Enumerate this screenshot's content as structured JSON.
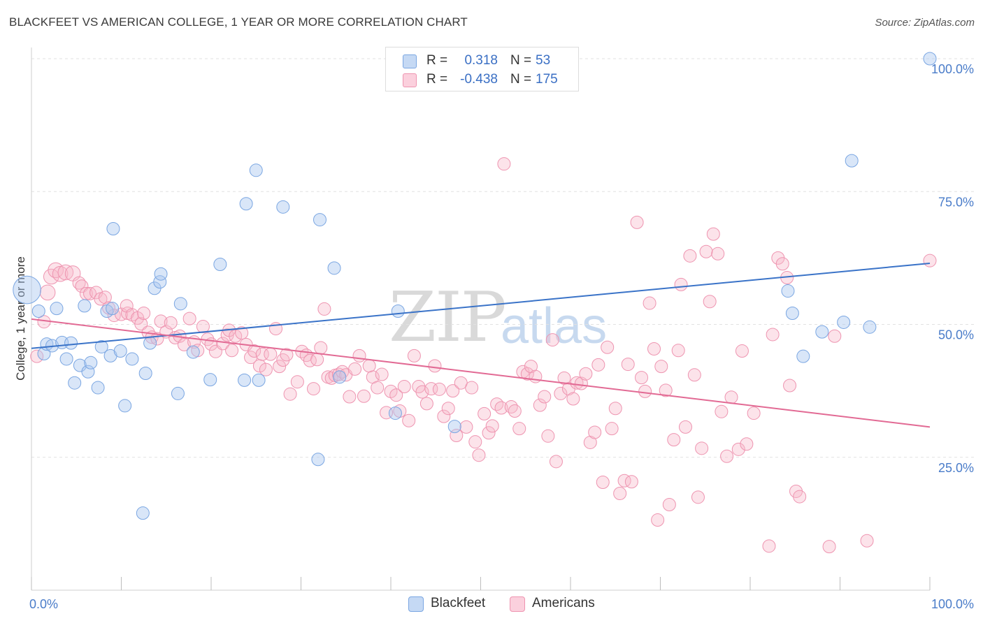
{
  "title": "BLACKFEET VS AMERICAN COLLEGE, 1 YEAR OR MORE CORRELATION CHART",
  "source": "Source: ZipAtlas.com",
  "watermark": {
    "part1": "ZIP",
    "part2": "atlas"
  },
  "legend_top": {
    "rows": [
      {
        "r_label": "R =",
        "r_value": "0.318",
        "n_label": "N =",
        "n_value": "53",
        "color": "#aac8f0"
      },
      {
        "r_label": "R =",
        "r_value": "-0.438",
        "n_label": "N =",
        "n_value": "175",
        "color": "#f7b9cb"
      }
    ]
  },
  "legend_bottom": [
    {
      "label": "Blackfeet",
      "color": "#aac8f0"
    },
    {
      "label": "Americans",
      "color": "#f7b9cb"
    }
  ],
  "chart_data": {
    "type": "scatter",
    "xlabel": "",
    "ylabel": "College, 1 year or more",
    "xlim": [
      0,
      100
    ],
    "ylim": [
      0,
      100
    ],
    "x_tick_labels": [
      "0.0%",
      "100.0%"
    ],
    "y_tick_labels": [
      "25.0%",
      "50.0%",
      "75.0%",
      "100.0%"
    ],
    "y_ticks": [
      25,
      50,
      75,
      100
    ],
    "colors": {
      "blackfeet": "#6a9fe0",
      "americans": "#ee8aa8",
      "blackfeet_line": "#3a73c8",
      "americans_line": "#e26a94"
    },
    "series": [
      {
        "name": "Blackfeet",
        "trend": {
          "x0": 0,
          "y0": 45.5,
          "x1": 100,
          "y1": 61.5
        },
        "points": [
          [
            -0.5,
            56.5,
            2.2
          ],
          [
            0.8,
            52.5,
            1
          ],
          [
            1.4,
            44.5,
            1
          ],
          [
            1.7,
            46.3,
            1
          ],
          [
            2.3,
            46,
            1
          ],
          [
            2.8,
            53,
            1
          ],
          [
            3.4,
            46.6,
            1
          ],
          [
            3.9,
            43.5,
            1
          ],
          [
            4.4,
            46.5,
            1
          ],
          [
            4.8,
            39,
            1
          ],
          [
            5.4,
            42.3,
            1
          ],
          [
            5.9,
            53.5,
            1
          ],
          [
            6.3,
            41.1,
            1
          ],
          [
            6.6,
            42.8,
            1
          ],
          [
            7.4,
            38.1,
            1
          ],
          [
            7.8,
            45.8,
            1
          ],
          [
            8.4,
            52.5,
            1
          ],
          [
            8.8,
            44.1,
            1
          ],
          [
            9.0,
            53,
            1
          ],
          [
            9.1,
            68,
            1
          ],
          [
            9.9,
            45,
            1
          ],
          [
            10.4,
            34.7,
            1
          ],
          [
            11.2,
            43.5,
            1
          ],
          [
            12.4,
            14.5,
            1
          ],
          [
            12.7,
            40.8,
            1
          ],
          [
            13.2,
            46.5,
            1
          ],
          [
            13.7,
            56.8,
            1
          ],
          [
            14.3,
            58,
            1
          ],
          [
            14.4,
            59.5,
            1
          ],
          [
            16.3,
            37,
            1
          ],
          [
            16.6,
            53.9,
            1
          ],
          [
            18,
            44.8,
            1
          ],
          [
            19.9,
            39.6,
            1
          ],
          [
            21,
            61.3,
            1
          ],
          [
            23.7,
            39.5,
            1
          ],
          [
            25.0,
            79,
            1
          ],
          [
            23.9,
            72.7,
            1
          ],
          [
            25.3,
            39.5,
            1
          ],
          [
            28.0,
            72.1,
            1
          ],
          [
            32.1,
            69.7,
            1
          ],
          [
            31.9,
            24.6,
            1
          ],
          [
            33.7,
            60.6,
            1
          ],
          [
            34.3,
            40.1,
            1
          ],
          [
            40.8,
            52.5,
            1
          ],
          [
            40.5,
            33.3,
            1
          ],
          [
            47.1,
            30.8,
            1
          ],
          [
            84.2,
            56.3,
            1
          ],
          [
            84.7,
            52.1,
            1
          ],
          [
            85.9,
            44,
            1
          ],
          [
            88,
            48.6,
            1
          ],
          [
            90.4,
            50.4,
            1
          ],
          [
            91.3,
            80.8,
            1
          ],
          [
            93.3,
            49.5,
            1
          ],
          [
            100,
            100,
            1
          ]
        ]
      },
      {
        "name": "Americans",
        "trend": {
          "x0": 0,
          "y0": 51,
          "x1": 100,
          "y1": 30.7
        },
        "points": [
          [
            0.6,
            44,
            1
          ],
          [
            1.4,
            50.5,
            1
          ],
          [
            1.8,
            56,
            1.2
          ],
          [
            2.2,
            59,
            1.2
          ],
          [
            2.7,
            60.2,
            1.2
          ],
          [
            3.2,
            59.5,
            1.2
          ],
          [
            3.8,
            59.8,
            1.2
          ],
          [
            4.6,
            59.6,
            1.2
          ],
          [
            5.3,
            57.8,
            1
          ],
          [
            5.6,
            57.2,
            1
          ],
          [
            6.1,
            55.8,
            1
          ],
          [
            6.5,
            55.8,
            1
          ],
          [
            7.2,
            56,
            1
          ],
          [
            7.7,
            54.8,
            1
          ],
          [
            8.2,
            55.1,
            1
          ],
          [
            8.6,
            53.1,
            1
          ],
          [
            9.2,
            51.7,
            1
          ],
          [
            10.0,
            51.9,
            1
          ],
          [
            10.7,
            52.1,
            1
          ],
          [
            10.6,
            53.5,
            1
          ],
          [
            11.2,
            51.8,
            1
          ],
          [
            11.8,
            51.2,
            1
          ],
          [
            12.2,
            50.1,
            1
          ],
          [
            12.5,
            52.1,
            1
          ],
          [
            13.0,
            48.5,
            1
          ],
          [
            13.4,
            47.6,
            1
          ],
          [
            14.0,
            47.3,
            1
          ],
          [
            14.4,
            50.6,
            1
          ],
          [
            15.0,
            48.6,
            1
          ],
          [
            15.5,
            50.3,
            1
          ],
          [
            16.0,
            47.5,
            1
          ],
          [
            16.5,
            47.8,
            1
          ],
          [
            17.0,
            46.2,
            1
          ],
          [
            17.6,
            51.1,
            1
          ],
          [
            18.1,
            46.7,
            1
          ],
          [
            18.5,
            45.1,
            1
          ],
          [
            19.1,
            49.6,
            1
          ],
          [
            19.6,
            47.2,
            1
          ],
          [
            20.0,
            46.3,
            1
          ],
          [
            20.5,
            44.9,
            1
          ],
          [
            21.3,
            46.4,
            1
          ],
          [
            21.8,
            48,
            1
          ],
          [
            22.0,
            48.9,
            1
          ],
          [
            22.3,
            45.1,
            1
          ],
          [
            22.7,
            47.8,
            1
          ],
          [
            23.4,
            48.4,
            1
          ],
          [
            23.9,
            46.2,
            1
          ],
          [
            24.4,
            43.8,
            1
          ],
          [
            24.8,
            45,
            1
          ],
          [
            25.4,
            42.2,
            1
          ],
          [
            25.7,
            44.4,
            1
          ],
          [
            26.1,
            41.5,
            1
          ],
          [
            26.6,
            44.4,
            1
          ],
          [
            27.2,
            49.2,
            1
          ],
          [
            27.6,
            42.1,
            1
          ],
          [
            28.0,
            43.3,
            1
          ],
          [
            28.4,
            44.3,
            1
          ],
          [
            28.8,
            36.9,
            1
          ],
          [
            29.6,
            39.2,
            1
          ],
          [
            30.1,
            44.9,
            1
          ],
          [
            30.6,
            44.2,
            1
          ],
          [
            31.0,
            43.2,
            1
          ],
          [
            31.4,
            37.9,
            1
          ],
          [
            31.8,
            43.4,
            1
          ],
          [
            32.2,
            45.6,
            1
          ],
          [
            32.6,
            52.9,
            1
          ],
          [
            33.0,
            40.1,
            1
          ],
          [
            33.4,
            39.9,
            1
          ],
          [
            33.8,
            40.4,
            1
          ],
          [
            34.2,
            40.6,
            1
          ],
          [
            34.6,
            41.1,
            1
          ],
          [
            35.0,
            40.5,
            1
          ],
          [
            35.4,
            36.4,
            1
          ],
          [
            36.0,
            41.6,
            1
          ],
          [
            36.5,
            44.1,
            1
          ],
          [
            37.0,
            36.5,
            1
          ],
          [
            37.6,
            42.2,
            1
          ],
          [
            38.0,
            40.1,
            1
          ],
          [
            38.5,
            38.1,
            1
          ],
          [
            39.0,
            40.6,
            1
          ],
          [
            39.5,
            33.4,
            1
          ],
          [
            40.0,
            37.4,
            1
          ],
          [
            40.6,
            36.7,
            1
          ],
          [
            41.0,
            33.7,
            1
          ],
          [
            41.5,
            38.3,
            1
          ],
          [
            42.0,
            31.9,
            1
          ],
          [
            42.6,
            44.1,
            1
          ],
          [
            43.1,
            38.3,
            1
          ],
          [
            43.5,
            37.3,
            1
          ],
          [
            44.0,
            35.1,
            1
          ],
          [
            44.5,
            37.9,
            1
          ],
          [
            44.9,
            42.2,
            1
          ],
          [
            45.4,
            37.8,
            1
          ],
          [
            45.9,
            32.7,
            1
          ],
          [
            46.4,
            34.2,
            1
          ],
          [
            46.9,
            37.5,
            1
          ],
          [
            47.3,
            29.1,
            1
          ],
          [
            47.8,
            39,
            1
          ],
          [
            48.4,
            30.7,
            1
          ],
          [
            49.0,
            38.1,
            1
          ],
          [
            49.4,
            27.9,
            1
          ],
          [
            49.8,
            25.4,
            1
          ],
          [
            50.4,
            33.2,
            1
          ],
          [
            50.9,
            29.6,
            1
          ],
          [
            51.3,
            30.9,
            1
          ],
          [
            51.8,
            35,
            1
          ],
          [
            52.3,
            34.3,
            1
          ],
          [
            52.6,
            80.2,
            1
          ],
          [
            53.4,
            34.5,
            1
          ],
          [
            53.8,
            33.7,
            1
          ],
          [
            54.3,
            30.4,
            1
          ],
          [
            54.7,
            41.1,
            1
          ],
          [
            55.2,
            40.7,
            1
          ],
          [
            55.6,
            42.1,
            1
          ],
          [
            56.1,
            40.2,
            1
          ],
          [
            56.6,
            34.8,
            1
          ],
          [
            57.1,
            36.4,
            1
          ],
          [
            57.5,
            29,
            1
          ],
          [
            58.0,
            47.1,
            1
          ],
          [
            58.4,
            24.2,
            1
          ],
          [
            58.9,
            37,
            1
          ],
          [
            59.3,
            39.9,
            1
          ],
          [
            59.8,
            37.9,
            1
          ],
          [
            60.3,
            36,
            1
          ],
          [
            60.7,
            39,
            1
          ],
          [
            61.2,
            38.9,
            1
          ],
          [
            61.7,
            40.7,
            1
          ],
          [
            62.2,
            27.8,
            1
          ],
          [
            62.7,
            29.7,
            1
          ],
          [
            63.1,
            42.4,
            1
          ],
          [
            63.6,
            20.3,
            1
          ],
          [
            64.1,
            45.7,
            1
          ],
          [
            64.6,
            30.4,
            1
          ],
          [
            65.0,
            34.2,
            1
          ],
          [
            65.5,
            18.2,
            1
          ],
          [
            66.0,
            20.6,
            1
          ],
          [
            66.4,
            42.5,
            1
          ],
          [
            66.8,
            20.4,
            1
          ],
          [
            67.4,
            69.2,
            1
          ],
          [
            67.9,
            40,
            1
          ],
          [
            68.3,
            37.4,
            1
          ],
          [
            68.8,
            54,
            1
          ],
          [
            69.3,
            45.4,
            1
          ],
          [
            69.7,
            13.2,
            1
          ],
          [
            70.1,
            42.1,
            1
          ],
          [
            70.6,
            37.6,
            1
          ],
          [
            71.0,
            16.1,
            1
          ],
          [
            71.5,
            28.3,
            1
          ],
          [
            72.0,
            45.1,
            1
          ],
          [
            72.3,
            57.5,
            1
          ],
          [
            72.8,
            30.7,
            1
          ],
          [
            73.3,
            62.9,
            1
          ],
          [
            73.8,
            40.5,
            1
          ],
          [
            74.2,
            17.5,
            1
          ],
          [
            74.6,
            26.7,
            1
          ],
          [
            75.1,
            63.7,
            1
          ],
          [
            75.5,
            54.3,
            1
          ],
          [
            75.9,
            67,
            1
          ],
          [
            76.4,
            63.3,
            1
          ],
          [
            76.8,
            33.6,
            1
          ],
          [
            77.4,
            25.2,
            1
          ],
          [
            77.9,
            36.3,
            1
          ],
          [
            78.7,
            26.5,
            1
          ],
          [
            79.1,
            45,
            1
          ],
          [
            79.6,
            27.5,
            1
          ],
          [
            80.4,
            33.3,
            1
          ],
          [
            82.1,
            8.3,
            1
          ],
          [
            82.5,
            48.1,
            1
          ],
          [
            83.1,
            62.5,
            1
          ],
          [
            83.6,
            61.4,
            1
          ],
          [
            84.1,
            58.8,
            1
          ],
          [
            84.4,
            38.5,
            1
          ],
          [
            85.1,
            18.6,
            1
          ],
          [
            85.5,
            17.6,
            1
          ],
          [
            88.8,
            8.2,
            1
          ],
          [
            89.4,
            47.8,
            1
          ],
          [
            93.0,
            9.3,
            1
          ],
          [
            100,
            62,
            1
          ]
        ]
      }
    ]
  }
}
